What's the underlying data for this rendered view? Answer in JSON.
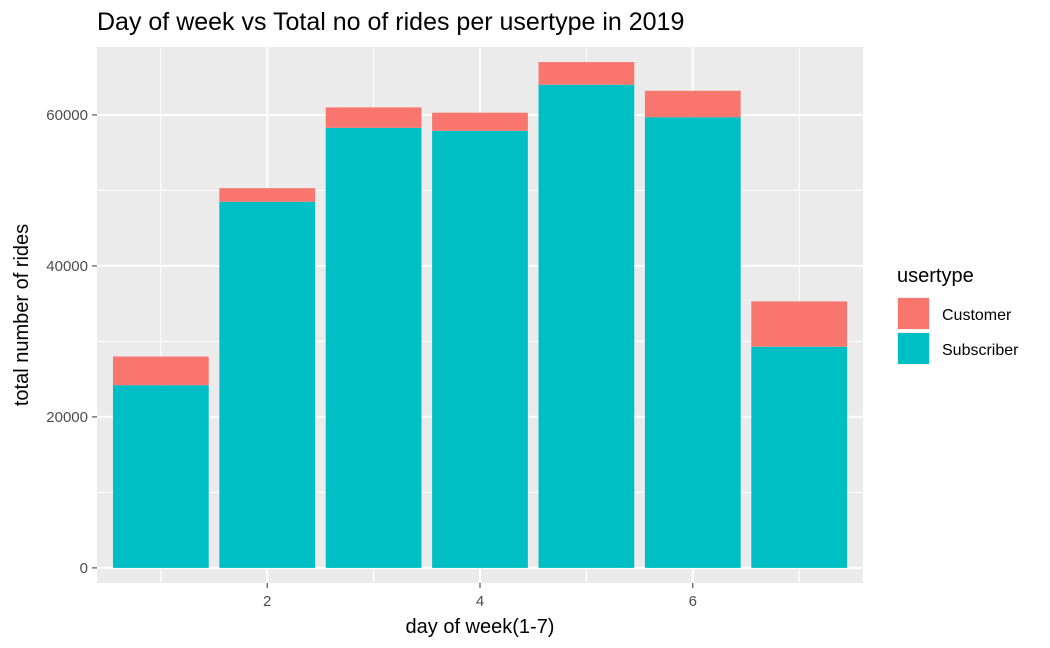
{
  "chart_data": {
    "type": "bar",
    "stacked": true,
    "title": "Day of week vs Total no of rides per usertype in 2019",
    "xlabel": "day of week(1-7)",
    "ylabel": "total number of rides",
    "x": [
      1,
      2,
      3,
      4,
      5,
      6,
      7
    ],
    "x_ticks": [
      2,
      4,
      6
    ],
    "xlim": [
      0.4,
      7.6
    ],
    "ylim": [
      -2000,
      69000
    ],
    "y_ticks": [
      0,
      20000,
      40000,
      60000
    ],
    "grid": true,
    "legend_position": "right",
    "legend_title": "usertype",
    "series": [
      {
        "name": "Subscriber",
        "color": "#00BFC4",
        "values": [
          24200,
          48500,
          58300,
          57900,
          64000,
          59700,
          29300
        ]
      },
      {
        "name": "Customer",
        "color": "#F8766D",
        "values": [
          3800,
          1800,
          2700,
          2400,
          3000,
          3500,
          6000
        ]
      }
    ],
    "legend_order": [
      "Customer",
      "Subscriber"
    ]
  }
}
